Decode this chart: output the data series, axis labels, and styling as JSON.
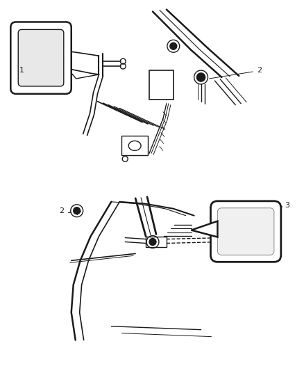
{
  "bg_color": "#ffffff",
  "line_color": "#1a1a1a",
  "label_color": "#1a1a1a",
  "label_fontsize": 8,
  "line_width": 1.0,
  "fig_width": 4.38,
  "fig_height": 5.33,
  "dpi": 100
}
